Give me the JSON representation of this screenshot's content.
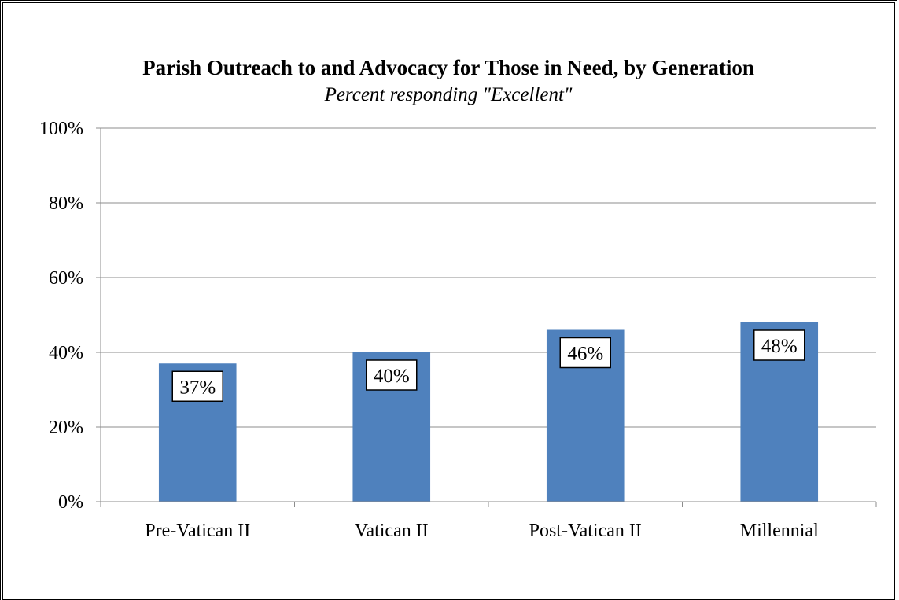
{
  "chart_data": {
    "type": "bar",
    "title": "Parish Outreach to and Advocacy for Those in Need, by Generation",
    "subtitle": "Percent responding \"Excellent\"",
    "categories": [
      "Pre-Vatican II",
      "Vatican II",
      "Post-Vatican II",
      "Millennial"
    ],
    "values": [
      37,
      40,
      46,
      48
    ],
    "data_labels": [
      "37%",
      "40%",
      "46%",
      "48%"
    ],
    "ylim": [
      0,
      100
    ],
    "yticks": [
      0,
      20,
      40,
      60,
      80,
      100
    ],
    "ytick_labels": [
      "0%",
      "20%",
      "40%",
      "60%",
      "80%",
      "100%"
    ],
    "grid": true,
    "legend": "none",
    "bar_color": "#4f81bd"
  }
}
